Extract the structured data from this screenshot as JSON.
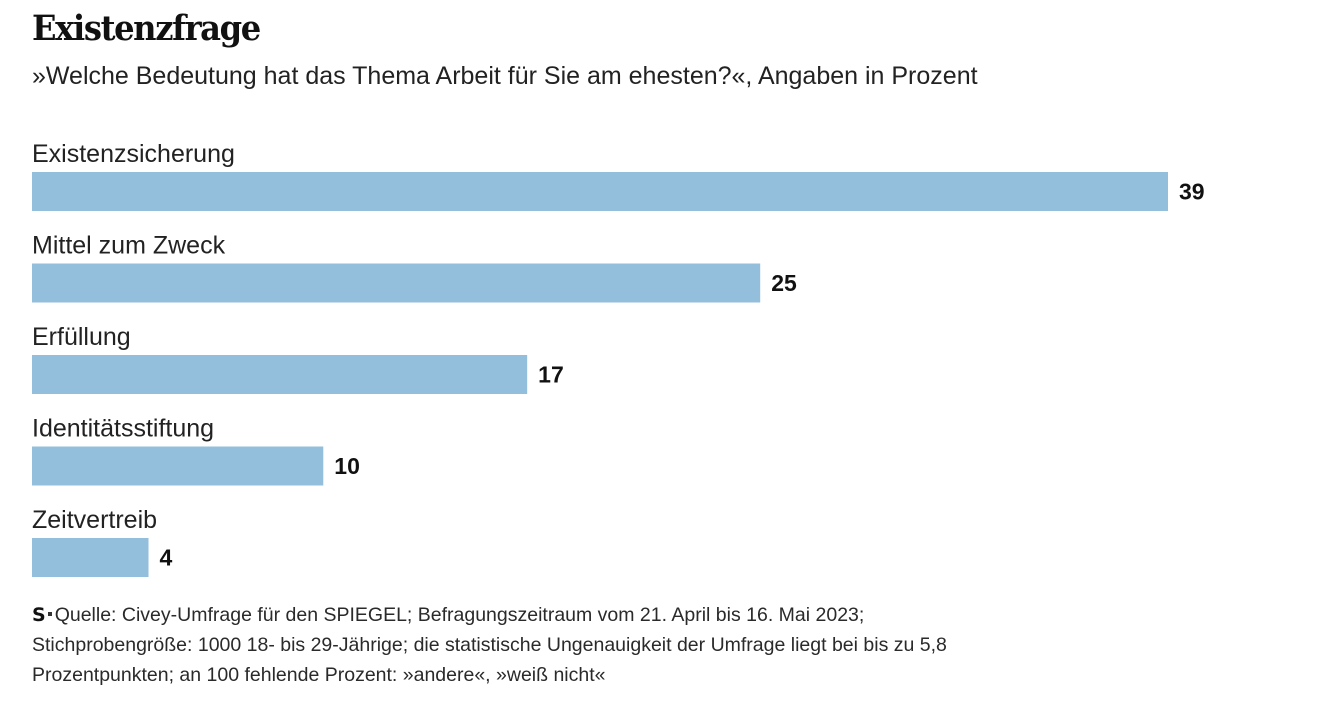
{
  "header": {
    "title": "Existenzfrage",
    "subtitle": "»Welche Bedeutung hat das Thema Arbeit für Sie am ehesten?«, Angaben in Prozent"
  },
  "chart_data": {
    "type": "bar",
    "orientation": "horizontal",
    "title": "Existenzfrage",
    "subtitle": "»Welche Bedeutung hat das Thema Arbeit für Sie am ehesten?«, Angaben in Prozent",
    "categories": [
      "Existenzsicherung",
      "Mittel zum Zweck",
      "Erfüllung",
      "Identitätsstiftung",
      "Zeitvertreib"
    ],
    "values": [
      39,
      25,
      17,
      10,
      4
    ],
    "unit": "Prozent",
    "xlim": [
      0,
      39
    ],
    "bar_color": "#94bfdc",
    "grid": false,
    "legend": "none"
  },
  "footer": {
    "logo": "S",
    "lines": [
      "Quelle: Civey-Umfrage für den SPIEGEL; Befragungszeitraum vom 21. April bis 16. Mai 2023;",
      "Stichprobengröße: 1000 18- bis 29-Jährige; die statistische Ungenauigkeit der Umfrage liegt bei bis zu 5,8",
      "Prozentpunkten; an 100 fehlende Prozent: »andere«, »weiß nicht«"
    ]
  }
}
